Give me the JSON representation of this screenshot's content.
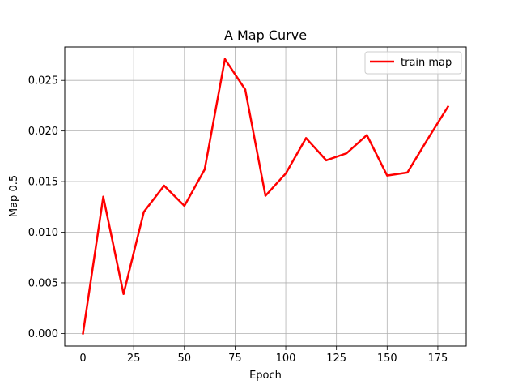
{
  "chart_data": {
    "type": "line",
    "title": "A Map Curve",
    "xlabel": "Epoch",
    "ylabel": "Map 0.5",
    "x": [
      0,
      10,
      20,
      30,
      40,
      50,
      60,
      70,
      80,
      90,
      100,
      110,
      120,
      130,
      140,
      150,
      160,
      170,
      180
    ],
    "series": [
      {
        "name": "train map",
        "color": "#ff0000",
        "values": [
          0.0,
          0.0135,
          0.0039,
          0.012,
          0.0146,
          0.0126,
          0.0162,
          0.0271,
          0.0241,
          0.0136,
          0.0158,
          0.0193,
          0.0171,
          0.0178,
          0.0196,
          0.0156,
          0.0159,
          0.0192,
          0.0224
        ]
      }
    ],
    "xlim": [
      -9,
      189
    ],
    "ylim": [
      -0.00125,
      0.0283
    ],
    "xticks": [
      0,
      25,
      50,
      75,
      100,
      125,
      150,
      175
    ],
    "xtick_labels": [
      "0",
      "25",
      "50",
      "75",
      "100",
      "125",
      "150",
      "175"
    ],
    "yticks": [
      0.0,
      0.005,
      0.01,
      0.015,
      0.02,
      0.025
    ],
    "ytick_labels": [
      "0.000",
      "0.005",
      "0.010",
      "0.015",
      "0.020",
      "0.025"
    ],
    "grid": true,
    "legend_position": "upper right"
  }
}
